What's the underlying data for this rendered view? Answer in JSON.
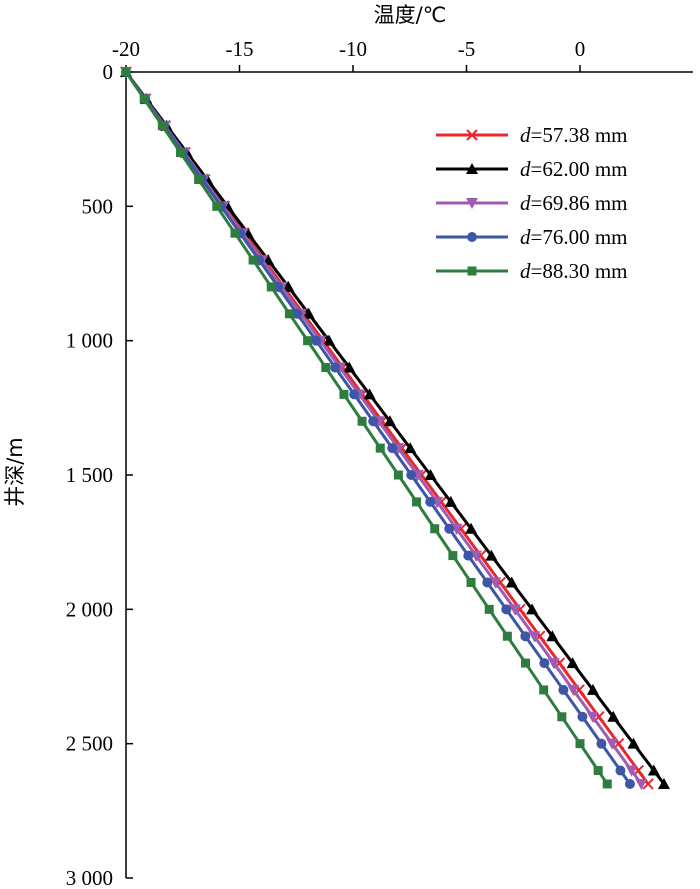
{
  "chart_data": {
    "type": "line",
    "xlabel": "温度/℃",
    "ylabel": "井深/m",
    "xlim": [
      -20,
      5
    ],
    "ylim": [
      0,
      3000
    ],
    "x_axis_position": "top",
    "y_axis_inverted": true,
    "grid": false,
    "legend_position": "top-right",
    "x_ticks": [
      -20,
      -15,
      -10,
      -5,
      0
    ],
    "x_tick_labels": [
      "-20",
      "-15",
      "-10",
      "-5",
      "0"
    ],
    "y_ticks": [
      0,
      500,
      1000,
      1500,
      2000,
      2500,
      3000
    ],
    "y_tick_labels": [
      "0",
      "500",
      "1 000",
      "1 500",
      "2 000",
      "2 500",
      "3 000"
    ],
    "depth_start": 0,
    "depth_step": 100,
    "series": [
      {
        "name": "d=57.38 mm",
        "legend_var": "d",
        "legend_value": "=57.38 mm",
        "color": "#e8282b",
        "marker": "x",
        "temp_start": -20,
        "temp_end": 3.0
      },
      {
        "name": "d=62.00 mm",
        "legend_var": "d",
        "legend_value": "=62.00 mm",
        "color": "#000000",
        "marker": "triangle-up",
        "temp_start": -20,
        "temp_end": 3.7
      },
      {
        "name": "d=69.86 mm",
        "legend_var": "d",
        "legend_value": "=69.86 mm",
        "color": "#a05bb5",
        "marker": "triangle-down",
        "temp_start": -20,
        "temp_end": 2.7
      },
      {
        "name": "d=76.00 mm",
        "legend_var": "d",
        "legend_value": "=76.00 mm",
        "color": "#3e56a6",
        "marker": "circle",
        "temp_start": -20,
        "temp_end": 2.2
      },
      {
        "name": "d=88.30 mm",
        "legend_var": "d",
        "legend_value": "=88.30 mm",
        "color": "#2e7d3e",
        "marker": "square",
        "temp_start": -20,
        "temp_end": 1.2
      }
    ],
    "max_depth": 2650
  }
}
